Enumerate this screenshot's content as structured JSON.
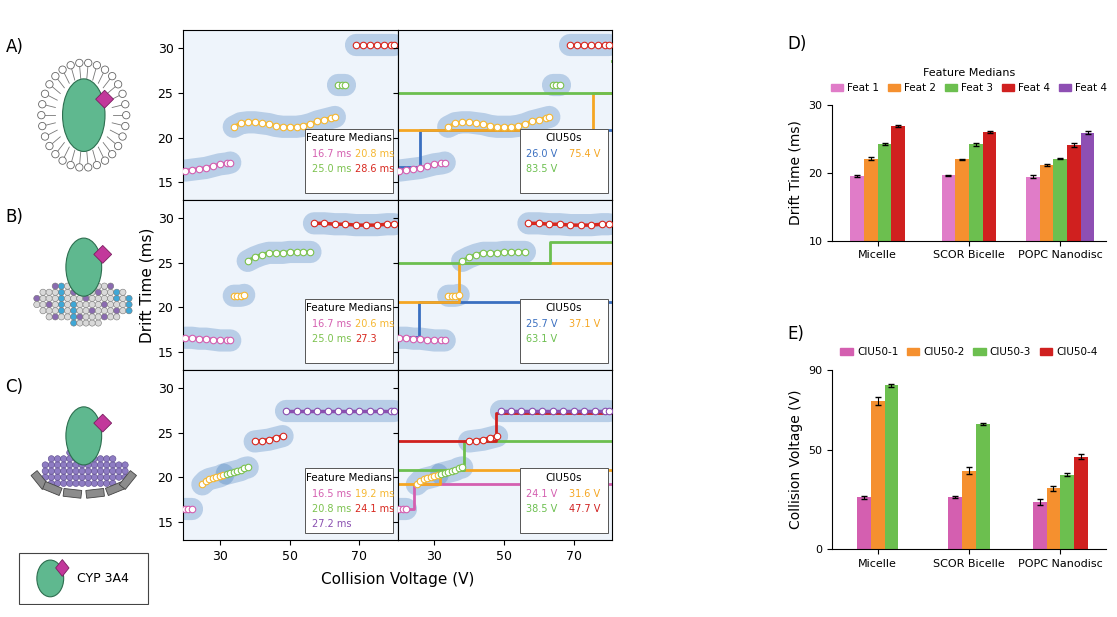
{
  "key_label": "CYP 3A4",
  "chart_data": [
    {
      "type": "ciu",
      "label": "A)",
      "xlim": [
        19.5,
        81
      ],
      "ylim": [
        13,
        32
      ],
      "xticks": [
        30,
        50,
        70
      ],
      "yticks": [
        15,
        20,
        25,
        30
      ],
      "tick_labels": "y",
      "medians_title": "Feature Medians",
      "ciu50_title": "CIU50s",
      "features": [
        {
          "color": "#d45fb0",
          "x": [
            20,
            22,
            24,
            26,
            28,
            30,
            32,
            33
          ],
          "y": [
            16.3,
            16.4,
            16.5,
            16.6,
            16.8,
            17.0,
            17.1,
            17.2
          ],
          "median": 16.7,
          "median_label": "16.7 ms"
        },
        {
          "color": "#f5b731",
          "x": [
            34,
            36,
            38,
            40,
            42,
            44,
            46,
            48,
            50,
            52,
            54,
            56,
            58,
            60,
            62,
            63
          ],
          "y": [
            21.2,
            21.6,
            21.7,
            21.7,
            21.6,
            21.5,
            21.3,
            21.2,
            21.2,
            21.2,
            21.3,
            21.5,
            21.8,
            22.0,
            22.2,
            22.3
          ],
          "median": 20.8,
          "median_label": "20.8 ms"
        },
        {
          "color": "#7cc24e",
          "x": [
            64,
            65,
            66
          ],
          "y": [
            25.9,
            25.9,
            25.9
          ],
          "median": 25.0,
          "median_label": "25.0 ms"
        },
        {
          "color": "#d8281f",
          "x": [
            69,
            71,
            73,
            75,
            77,
            79,
            80
          ],
          "y": [
            30.3,
            30.3,
            30.3,
            30.3,
            30.3,
            30.3,
            30.3
          ],
          "median": 28.6,
          "median_label": "28.6 ms"
        }
      ],
      "transitions": [
        {
          "ciu50": 26.0,
          "label": "26.0 V",
          "color": "#3a6fc0"
        },
        {
          "ciu50": 75.4,
          "label": "75.4 V",
          "color": "#f5a623"
        },
        {
          "ciu50": 83.5,
          "label": "83.5 V",
          "color": "#6cbf4f"
        }
      ]
    },
    {
      "type": "ciu",
      "label": "B)",
      "ylabel": "Drift Time (ms)",
      "xlim": [
        19.5,
        81
      ],
      "ylim": [
        13,
        32
      ],
      "xticks": [
        30,
        50,
        70
      ],
      "yticks": [
        15,
        20,
        25,
        30
      ],
      "tick_labels": "y",
      "medians_title": "Feature Medians",
      "ciu50_title": "CIU50s",
      "features": [
        {
          "color": "#d45fb0",
          "x": [
            20,
            22,
            24,
            26,
            28,
            30,
            32,
            33
          ],
          "y": [
            16.6,
            16.6,
            16.5,
            16.5,
            16.4,
            16.3,
            16.3,
            16.3
          ],
          "median": 16.7,
          "median_label": "16.7 ms"
        },
        {
          "color": "#f5b731",
          "x": [
            34,
            35,
            36,
            37
          ],
          "y": [
            21.3,
            21.3,
            21.3,
            21.4
          ],
          "median": 20.6,
          "median_label": "20.6 ms"
        },
        {
          "color": "#7cc24e",
          "x": [
            38,
            40,
            42,
            44,
            46,
            48,
            50,
            52,
            54,
            56
          ],
          "y": [
            25.2,
            25.6,
            25.9,
            26.1,
            26.1,
            26.1,
            26.2,
            26.2,
            26.2,
            26.2
          ],
          "median": 25.0,
          "median_label": "25.0 ms"
        },
        {
          "color": "#d8281f",
          "x": [
            57,
            60,
            63,
            66,
            69,
            72,
            75,
            78,
            80
          ],
          "y": [
            29.4,
            29.4,
            29.3,
            29.3,
            29.2,
            29.2,
            29.2,
            29.3,
            29.3
          ],
          "median": 27.3,
          "median_label": "27.3"
        }
      ],
      "transitions": [
        {
          "ciu50": 25.7,
          "label": "25.7 V",
          "color": "#3a6fc0"
        },
        {
          "ciu50": 37.1,
          "label": "37.1 V",
          "color": "#f5a623"
        },
        {
          "ciu50": 63.1,
          "label": "63.1 V",
          "color": "#6cbf4f"
        }
      ]
    },
    {
      "type": "ciu",
      "label": "C)",
      "xlabel": "Collision Voltage (V)",
      "xlim": [
        19.5,
        81
      ],
      "ylim": [
        13,
        32
      ],
      "xticks": [
        30,
        50,
        70
      ],
      "yticks": [
        15,
        20,
        25,
        30
      ],
      "medians_title": "Feature Medians",
      "ciu50_title": "CIU50s",
      "features": [
        {
          "color": "#d45fb0",
          "x": [
            20,
            21,
            22
          ],
          "y": [
            16.5,
            16.5,
            16.5
          ],
          "median": 16.5,
          "median_label": "16.5 ms"
        },
        {
          "color": "#f5b731",
          "x": [
            25,
            26,
            27,
            28,
            29,
            30,
            31
          ],
          "y": [
            19.2,
            19.6,
            19.8,
            19.9,
            20.0,
            20.1,
            20.3
          ],
          "median": 19.2,
          "median_label": "19.2 ms"
        },
        {
          "color": "#7cc24e",
          "x": [
            32,
            33,
            34,
            35,
            36,
            37,
            38
          ],
          "y": [
            20.4,
            20.5,
            20.6,
            20.7,
            20.8,
            21.0,
            21.1
          ],
          "median": 20.8,
          "median_label": "20.8 ms"
        },
        {
          "color": "#d8281f",
          "x": [
            40,
            42,
            44,
            46,
            48
          ],
          "y": [
            24.0,
            24.1,
            24.2,
            24.4,
            24.6
          ],
          "median": 24.1,
          "median_label": "24.1 ms"
        },
        {
          "color": "#8a4fb0",
          "x": [
            49,
            52,
            55,
            58,
            61,
            64,
            67,
            70,
            73,
            76,
            79,
            80
          ],
          "y": [
            27.4,
            27.4,
            27.4,
            27.4,
            27.4,
            27.4,
            27.4,
            27.4,
            27.4,
            27.4,
            27.4,
            27.4
          ],
          "median": 27.2,
          "median_label": "27.2 ms"
        }
      ],
      "transitions": [
        {
          "ciu50": 24.1,
          "label": "24.1 V",
          "color": "#d45fb0"
        },
        {
          "ciu50": 31.6,
          "label": "31.6 V",
          "color": "#f5a623"
        },
        {
          "ciu50": 38.5,
          "label": "38.5 V",
          "color": "#6cbf4f"
        },
        {
          "ciu50": 47.7,
          "label": "47.7 V",
          "color": "#d0201f"
        }
      ]
    },
    {
      "type": "bar",
      "label": "D)",
      "legend_title": "Feature Medians",
      "legend": "lower center",
      "ylabel": "Drift Time (ms)",
      "categories": [
        "Micelle",
        "SCOR Bicelle",
        "POPC Nanodisc"
      ],
      "ylim": [
        10,
        30
      ],
      "yticks": [
        10,
        20,
        30
      ],
      "series": [
        {
          "name": "Feat 1",
          "color": "#e07cc8",
          "values": [
            19.5,
            19.6,
            19.4
          ],
          "errors": [
            0.15,
            0.1,
            0.2
          ]
        },
        {
          "name": "Feat 2",
          "color": "#f5902f",
          "values": [
            22.1,
            22.0,
            21.2
          ],
          "errors": [
            0.2,
            0.1,
            0.15
          ]
        },
        {
          "name": "Feat 3",
          "color": "#6cbf4f",
          "values": [
            24.3,
            24.2,
            22.1
          ],
          "errors": [
            0.15,
            0.2,
            0.1
          ]
        },
        {
          "name": "Feat 4",
          "color": "#d0201f",
          "values": [
            26.9,
            26.0,
            24.1
          ],
          "errors": [
            0.1,
            0.1,
            0.3
          ]
        },
        {
          "name": "Feat 4",
          "color": "#8e4fb3",
          "values": [
            null,
            null,
            25.9
          ],
          "errors": [
            null,
            null,
            0.2
          ]
        }
      ]
    },
    {
      "type": "bar",
      "label": "E)",
      "legend": "lower center",
      "ylabel": "Collision Voltage (V)",
      "categories": [
        "Micelle",
        "SCOR Bicelle",
        "POPC Nanodisc"
      ],
      "ylim": [
        0,
        90
      ],
      "yticks": [
        0,
        50,
        90
      ],
      "series": [
        {
          "name": "CIU50-1",
          "color": "#d45fb0",
          "values": [
            26.0,
            26.2,
            23.5
          ],
          "errors": [
            0.6,
            0.6,
            1.5
          ]
        },
        {
          "name": "CIU50-2",
          "color": "#f5902f",
          "values": [
            74.5,
            39.5,
            30.5
          ],
          "errors": [
            1.8,
            1.8,
            1.5
          ]
        },
        {
          "name": "CIU50-3",
          "color": "#6cbf4f",
          "values": [
            82.5,
            63.0,
            37.5
          ],
          "errors": [
            0.8,
            0.5,
            0.8
          ]
        },
        {
          "name": "CIU50-4",
          "color": "#d0201f",
          "values": [
            null,
            null,
            46.5
          ],
          "errors": [
            null,
            null,
            1.2
          ]
        }
      ]
    }
  ]
}
